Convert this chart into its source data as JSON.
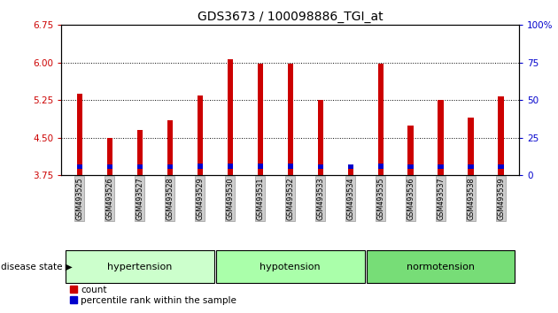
{
  "title": "GDS3673 / 100098886_TGI_at",
  "samples": [
    "GSM493525",
    "GSM493526",
    "GSM493527",
    "GSM493528",
    "GSM493529",
    "GSM493530",
    "GSM493531",
    "GSM493532",
    "GSM493533",
    "GSM493534",
    "GSM493535",
    "GSM493536",
    "GSM493537",
    "GSM493538",
    "GSM493539"
  ],
  "count_values": [
    5.38,
    4.5,
    4.65,
    4.85,
    5.35,
    6.07,
    5.97,
    5.98,
    5.25,
    3.9,
    5.98,
    4.75,
    5.25,
    4.9,
    5.33
  ],
  "percentile_values": [
    3.87,
    3.87,
    3.87,
    3.87,
    3.88,
    3.88,
    3.88,
    3.88,
    3.87,
    3.87,
    3.88,
    3.87,
    3.87,
    3.87,
    3.87
  ],
  "percentile_heights": [
    0.09,
    0.09,
    0.09,
    0.09,
    0.1,
    0.1,
    0.1,
    0.1,
    0.09,
    0.09,
    0.1,
    0.09,
    0.09,
    0.09,
    0.09
  ],
  "base_value": 3.75,
  "ylim": [
    3.75,
    6.75
  ],
  "yticks": [
    3.75,
    4.5,
    5.25,
    6.0,
    6.75
  ],
  "right_yticks": [
    0,
    25,
    50,
    75,
    100
  ],
  "right_ylim": [
    0,
    100
  ],
  "groups": [
    {
      "label": "hypertension",
      "start": 0,
      "end": 4,
      "color": "#ccffcc"
    },
    {
      "label": "hypotension",
      "start": 5,
      "end": 9,
      "color": "#aaffaa"
    },
    {
      "label": "normotension",
      "start": 10,
      "end": 14,
      "color": "#77dd77"
    }
  ],
  "bar_color_count": "#cc0000",
  "bar_color_percentile": "#0000cc",
  "bar_width": 0.18,
  "grid_color": "#000000",
  "bg_color": "#ffffff",
  "tick_label_color_left": "#cc0000",
  "tick_label_color_right": "#0000cc",
  "disease_state_label": "disease state",
  "legend_count": "count",
  "legend_percentile": "percentile rank within the sample",
  "title_fontsize": 10
}
